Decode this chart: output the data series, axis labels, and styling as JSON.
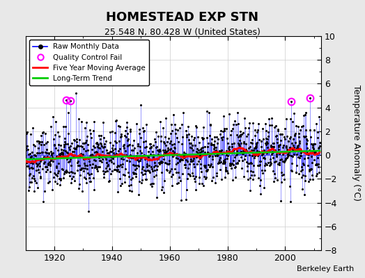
{
  "title": "HOMESTEAD EXP STN",
  "subtitle": "25.548 N, 80.428 W (United States)",
  "ylabel": "Temperature Anomaly (°C)",
  "credit": "Berkeley Earth",
  "start_year": 1910,
  "end_year": 2012,
  "ylim": [
    -8,
    10
  ],
  "yticks": [
    -8,
    -6,
    -4,
    -2,
    0,
    2,
    4,
    6,
    8,
    10
  ],
  "xticks": [
    1920,
    1940,
    1960,
    1980,
    2000
  ],
  "raw_color": "#0000ff",
  "ma_color": "#ff0000",
  "trend_color": "#00cc00",
  "qc_color": "#ff00ff",
  "bg_color": "#e8e8e8",
  "plot_bg": "#ffffff",
  "seed": 42,
  "qc_years": [
    1924.0,
    1925.5,
    2002.0,
    2008.5
  ]
}
